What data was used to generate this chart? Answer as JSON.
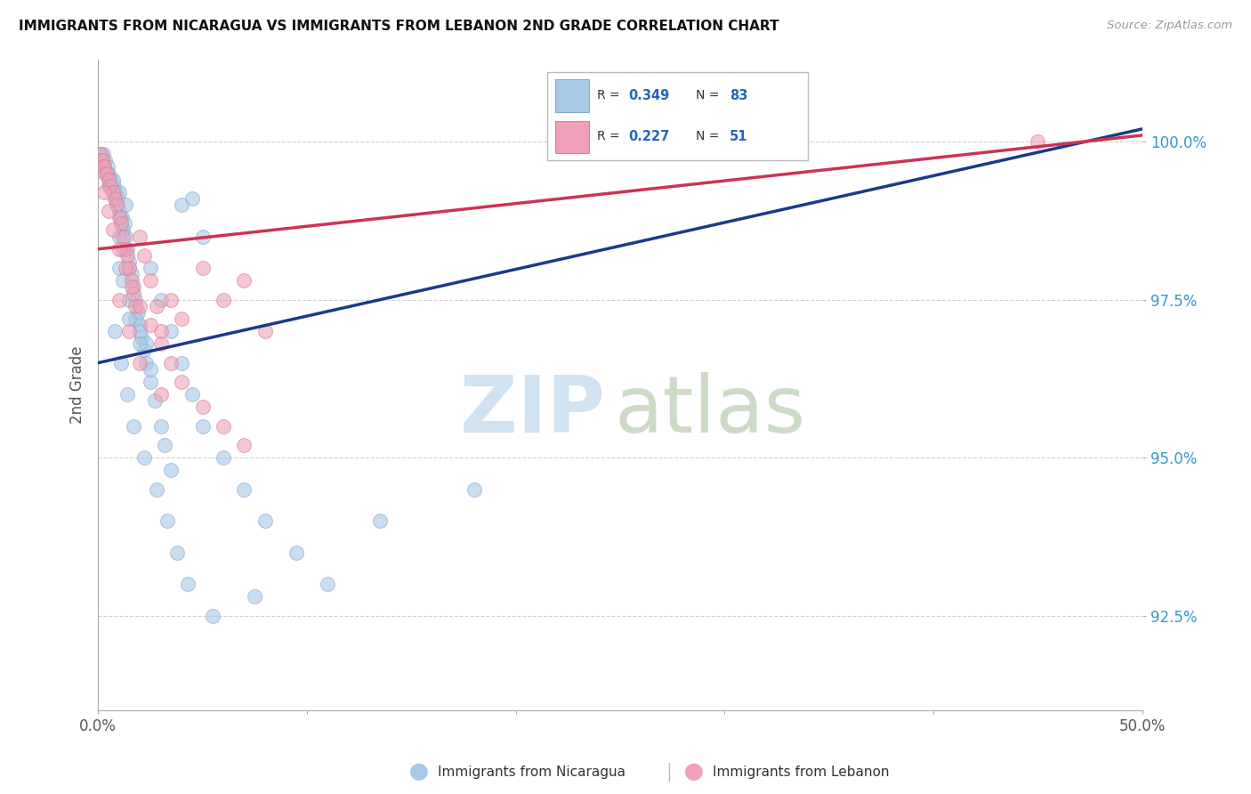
{
  "title": "IMMIGRANTS FROM NICARAGUA VS IMMIGRANTS FROM LEBANON 2ND GRADE CORRELATION CHART",
  "source": "Source: ZipAtlas.com",
  "ylabel": "2nd Grade",
  "yticks": [
    92.5,
    95.0,
    97.5,
    100.0
  ],
  "ytick_labels": [
    "92.5%",
    "95.0%",
    "97.5%",
    "100.0%"
  ],
  "xmin": 0.0,
  "xmax": 50.0,
  "ymin": 91.0,
  "ymax": 101.3,
  "legend_blue": "Immigrants from Nicaragua",
  "legend_pink": "Immigrants from Lebanon",
  "R_blue": 0.349,
  "N_blue": 83,
  "R_pink": 0.227,
  "N_pink": 51,
  "blue_color": "#a8c8e8",
  "pink_color": "#f0a0b8",
  "line_blue": "#1a3a8a",
  "line_pink": "#cc3355",
  "blue_trend_x": [
    0.0,
    50.0
  ],
  "blue_trend_y": [
    96.5,
    100.2
  ],
  "pink_trend_x": [
    0.0,
    50.0
  ],
  "pink_trend_y": [
    98.3,
    100.1
  ],
  "blue_points_x": [
    0.1,
    0.15,
    0.2,
    0.25,
    0.3,
    0.35,
    0.4,
    0.45,
    0.5,
    0.55,
    0.6,
    0.65,
    0.7,
    0.75,
    0.8,
    0.85,
    0.9,
    0.95,
    1.0,
    1.05,
    1.1,
    1.15,
    1.2,
    1.25,
    1.3,
    1.4,
    1.5,
    1.6,
    1.7,
    1.8,
    1.9,
    2.0,
    2.1,
    2.2,
    2.3,
    2.5,
    2.7,
    3.0,
    3.2,
    3.5,
    4.0,
    4.5,
    5.0,
    1.0,
    1.2,
    1.5,
    1.8,
    2.0,
    2.3,
    0.5,
    0.7,
    1.0,
    1.3,
    2.5,
    3.0,
    3.5,
    4.0,
    4.5,
    5.0,
    6.0,
    7.0,
    8.0,
    9.5,
    11.0,
    13.5,
    18.0,
    1.5,
    2.0,
    2.5,
    1.0,
    1.2,
    1.5,
    0.8,
    1.1,
    1.4,
    1.7,
    2.2,
    2.8,
    3.3,
    3.8,
    4.3,
    5.5,
    7.5
  ],
  "blue_points_y": [
    99.8,
    99.7,
    99.7,
    99.8,
    99.6,
    99.7,
    99.5,
    99.6,
    99.5,
    99.4,
    99.3,
    99.4,
    99.2,
    99.3,
    99.1,
    99.2,
    99.0,
    99.1,
    98.9,
    98.8,
    98.7,
    98.8,
    98.6,
    98.7,
    98.5,
    98.3,
    98.1,
    97.9,
    97.7,
    97.5,
    97.3,
    97.1,
    96.9,
    96.7,
    96.5,
    96.2,
    95.9,
    95.5,
    95.2,
    94.8,
    99.0,
    99.1,
    98.5,
    98.0,
    97.8,
    97.5,
    97.2,
    97.0,
    96.8,
    99.3,
    99.4,
    99.2,
    99.0,
    98.0,
    97.5,
    97.0,
    96.5,
    96.0,
    95.5,
    95.0,
    94.5,
    94.0,
    93.5,
    93.0,
    94.0,
    94.5,
    97.2,
    96.8,
    96.4,
    98.5,
    98.3,
    98.0,
    97.0,
    96.5,
    96.0,
    95.5,
    95.0,
    94.5,
    94.0,
    93.5,
    93.0,
    92.5,
    92.8
  ],
  "pink_points_x": [
    0.1,
    0.15,
    0.2,
    0.25,
    0.3,
    0.35,
    0.4,
    0.5,
    0.6,
    0.7,
    0.8,
    0.9,
    1.0,
    1.1,
    1.2,
    1.3,
    1.4,
    1.5,
    1.6,
    1.7,
    1.8,
    2.0,
    2.2,
    2.5,
    2.8,
    3.0,
    3.5,
    4.0,
    5.0,
    6.0,
    7.0,
    8.0,
    45.0,
    0.3,
    0.5,
    0.7,
    1.0,
    1.3,
    1.6,
    2.0,
    2.5,
    3.0,
    3.5,
    4.0,
    5.0,
    6.0,
    7.0,
    1.0,
    1.5,
    2.0,
    3.0
  ],
  "pink_points_y": [
    99.8,
    99.7,
    99.7,
    99.6,
    99.6,
    99.5,
    99.5,
    99.4,
    99.3,
    99.2,
    99.1,
    99.0,
    98.8,
    98.7,
    98.5,
    98.3,
    98.2,
    98.0,
    97.8,
    97.6,
    97.4,
    98.5,
    98.2,
    97.8,
    97.4,
    97.0,
    97.5,
    97.2,
    98.0,
    97.5,
    97.8,
    97.0,
    100.0,
    99.2,
    98.9,
    98.6,
    98.3,
    98.0,
    97.7,
    97.4,
    97.1,
    96.8,
    96.5,
    96.2,
    95.8,
    95.5,
    95.2,
    97.5,
    97.0,
    96.5,
    96.0
  ]
}
